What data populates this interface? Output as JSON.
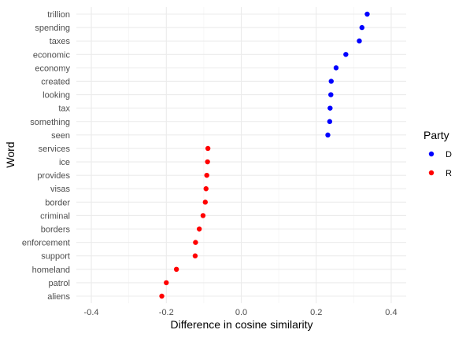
{
  "chart_data": {
    "type": "scatter",
    "xlabel": "Difference in cosine similarity",
    "ylabel": "Word",
    "xlim": [
      -0.44,
      0.44
    ],
    "xticks": [
      -0.4,
      -0.2,
      0.0,
      0.2,
      0.4
    ],
    "xtick_labels": [
      "-0.4",
      "-0.2",
      "0.0",
      "0.2",
      "0.4"
    ],
    "grid": true,
    "legend": {
      "title": "Party",
      "placement": "right",
      "entries": [
        {
          "label": "D",
          "color": "#0000ff"
        },
        {
          "label": "R",
          "color": "#ff0000"
        }
      ]
    },
    "categories": [
      "trillion",
      "spending",
      "taxes",
      "economic",
      "economy",
      "created",
      "looking",
      "tax",
      "something",
      "seen",
      "services",
      "ice",
      "provides",
      "visas",
      "border",
      "criminal",
      "borders",
      "enforcement",
      "support",
      "homeland",
      "patrol",
      "aliens"
    ],
    "points": [
      {
        "word": "trillion",
        "value": 0.336,
        "party": "D"
      },
      {
        "word": "spending",
        "value": 0.322,
        "party": "D"
      },
      {
        "word": "taxes",
        "value": 0.315,
        "party": "D"
      },
      {
        "word": "economic",
        "value": 0.279,
        "party": "D"
      },
      {
        "word": "economy",
        "value": 0.253,
        "party": "D"
      },
      {
        "word": "created",
        "value": 0.24,
        "party": "D"
      },
      {
        "word": "looking",
        "value": 0.239,
        "party": "D"
      },
      {
        "word": "tax",
        "value": 0.237,
        "party": "D"
      },
      {
        "word": "something",
        "value": 0.236,
        "party": "D"
      },
      {
        "word": "seen",
        "value": 0.231,
        "party": "D"
      },
      {
        "word": "services",
        "value": -0.089,
        "party": "R"
      },
      {
        "word": "ice",
        "value": -0.09,
        "party": "R"
      },
      {
        "word": "provides",
        "value": -0.092,
        "party": "R"
      },
      {
        "word": "visas",
        "value": -0.094,
        "party": "R"
      },
      {
        "word": "border",
        "value": -0.096,
        "party": "R"
      },
      {
        "word": "criminal",
        "value": -0.102,
        "party": "R"
      },
      {
        "word": "borders",
        "value": -0.112,
        "party": "R"
      },
      {
        "word": "enforcement",
        "value": -0.122,
        "party": "R"
      },
      {
        "word": "support",
        "value": -0.123,
        "party": "R"
      },
      {
        "word": "homeland",
        "value": -0.173,
        "party": "R"
      },
      {
        "word": "patrol",
        "value": -0.2,
        "party": "R"
      },
      {
        "word": "aliens",
        "value": -0.212,
        "party": "R"
      }
    ]
  }
}
